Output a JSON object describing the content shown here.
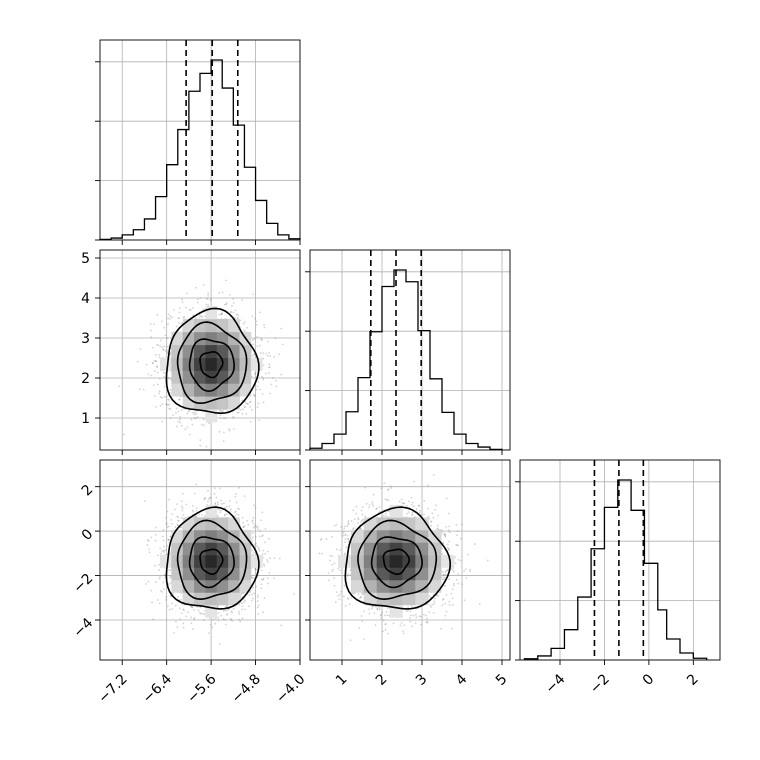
{
  "chart_data": {
    "type": "corner",
    "title": "",
    "grid": true,
    "parameters": [
      {
        "label": "",
        "range": [
          -7.6,
          -4.0
        ],
        "mean": -5.6,
        "std": 0.4,
        "quantiles": [
          -6.05,
          -5.58,
          -5.12
        ]
      },
      {
        "label": "",
        "range": [
          0.2,
          5.2
        ],
        "mean": 2.35,
        "std": 0.63,
        "quantiles": [
          1.72,
          2.35,
          2.98
        ]
      },
      {
        "label": "",
        "range": [
          -5.8,
          3.2
        ],
        "mean": -1.35,
        "std": 1.1,
        "quantiles": [
          -2.45,
          -1.35,
          -0.25
        ]
      }
    ],
    "x_tick_labels": [
      [
        "-7.2",
        "-6.4",
        "-5.6",
        "-4.8",
        "-4.0"
      ],
      [
        "1",
        "2",
        "3",
        "4",
        "5"
      ],
      [
        "-4",
        "-2",
        "0",
        "2"
      ]
    ],
    "x_tick_values": [
      [
        -7.2,
        -6.4,
        -5.6,
        -4.8,
        -4.0
      ],
      [
        1,
        2,
        3,
        4,
        5
      ],
      [
        -4,
        -2,
        0,
        2
      ]
    ],
    "y_tick_labels": {
      "row1": [
        "1",
        "2",
        "3",
        "4",
        "5"
      ],
      "row2": [
        "-4",
        "-2",
        "0",
        "2"
      ]
    },
    "y_tick_values": {
      "row1": [
        1,
        2,
        3,
        4,
        5
      ],
      "row2": [
        -4,
        -2,
        0,
        2
      ]
    },
    "histograms": [
      {
        "parameter": 0,
        "bin_edges": [
          -7.6,
          -7.4,
          -7.2,
          -7.0,
          -6.8,
          -6.6,
          -6.4,
          -6.2,
          -6.0,
          -5.8,
          -5.6,
          -5.4,
          -5.2,
          -5.0,
          -4.8,
          -4.6,
          -4.4,
          -4.2,
          -4.0
        ],
        "counts": [
          1,
          3,
          8,
          16,
          33,
          68,
          118,
          173,
          233,
          261,
          282,
          238,
          180,
          114,
          62,
          26,
          8,
          2
        ]
      },
      {
        "parameter": 1,
        "bin_edges": [
          0.2,
          0.5,
          0.8,
          1.1,
          1.4,
          1.7,
          2.0,
          2.3,
          2.6,
          2.9,
          3.2,
          3.5,
          3.8,
          4.1,
          4.4,
          4.7,
          5.0
        ],
        "counts": [
          3,
          11,
          27,
          65,
          123,
          201,
          278,
          306,
          286,
          203,
          121,
          64,
          27,
          11,
          5,
          1
        ]
      },
      {
        "parameter": 2,
        "bin_edges": [
          -5.6,
          -5.0,
          -4.4,
          -3.8,
          -3.2,
          -2.6,
          -2.0,
          -1.4,
          -0.8,
          -0.2,
          0.4,
          0.8,
          1.4,
          2.0,
          2.6
        ],
        "counts": [
          2,
          7,
          20,
          52,
          108,
          191,
          262,
          309,
          257,
          166,
          86,
          36,
          12,
          3
        ]
      }
    ],
    "contour_levels": [
      "39.3%",
      "86.5%",
      "98.9%"
    ],
    "density_panels": [
      {
        "x_parameter": 0,
        "y_parameter": 1,
        "correlation": 0.0
      },
      {
        "x_parameter": 0,
        "y_parameter": 2,
        "correlation": 0.0
      },
      {
        "x_parameter": 1,
        "y_parameter": 2,
        "correlation": 0.0
      }
    ]
  }
}
